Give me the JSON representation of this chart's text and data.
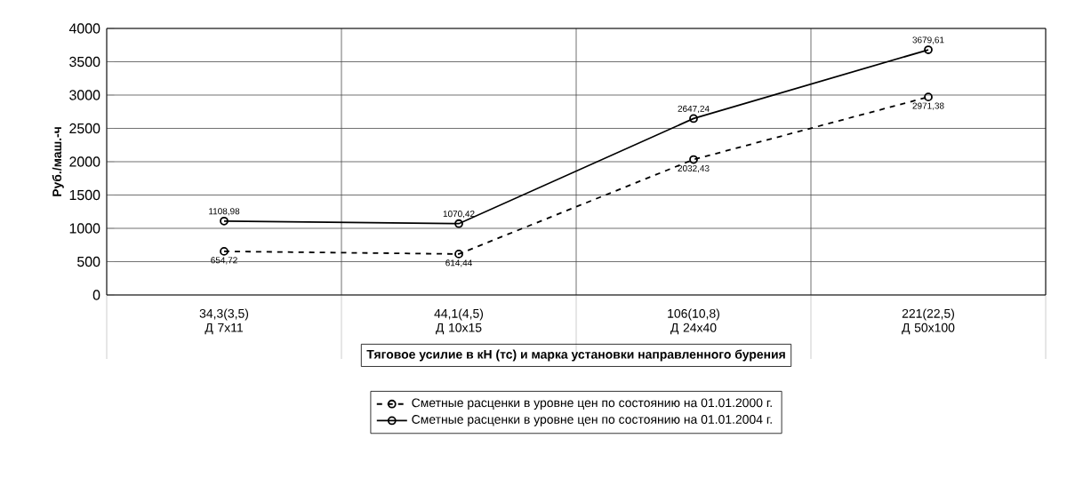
{
  "chart_data": {
    "type": "line",
    "ylabel": "Руб./маш.-ч",
    "xlabel": "Тяговое усилие в кН (тс) и марка установки направленного бурения",
    "categories": [
      "34,3(3,5)\nД 7x11",
      "44,1(4,5)\nД 10x15",
      "106(10,8)\nД 24x40",
      "221(22,5)\nД 50x100"
    ],
    "series": [
      {
        "name": "Сметные расценки в уровне цен по состоянию на 01.01.2000 г.",
        "color": "#000000",
        "line_style": "dashed",
        "values": [
          654.72,
          614.44,
          2032.43,
          2971.38
        ],
        "value_labels": [
          "654,72",
          "614,44",
          "2032,43",
          "2971,38"
        ]
      },
      {
        "name": "Сметные расценки в уровне цен по состоянию на 01.01.2004 г.",
        "color": "#000000",
        "line_style": "solid",
        "values": [
          1108.98,
          1070.42,
          2647.24,
          3679.61
        ],
        "value_labels": [
          "1108,98",
          "1070,42",
          "2647,24",
          "3679,61"
        ]
      }
    ],
    "marker": "circle",
    "ylim": [
      0,
      4000
    ],
    "yticks": [
      0,
      500,
      1000,
      1500,
      2000,
      2500,
      3000,
      3500,
      4000
    ],
    "grid": true,
    "legend": "bottom"
  }
}
